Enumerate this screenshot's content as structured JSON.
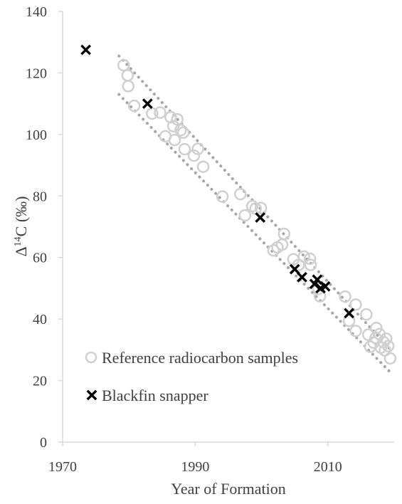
{
  "chart_data": {
    "type": "scatter",
    "xlabel": "Year of Formation",
    "ylabel_main": "Δ",
    "ylabel_sup": "14",
    "ylabel_rest": "C (‰)",
    "xlim": [
      1970,
      2020
    ],
    "ylim": [
      0,
      140
    ],
    "x_ticks": [
      1970,
      1990,
      2010
    ],
    "y_ticks": [
      0,
      20,
      40,
      60,
      80,
      100,
      120,
      140
    ],
    "grid": false,
    "legend_position": "bottom-left",
    "band": {
      "upper": [
        [
          1978.5,
          125.5
        ],
        [
          2019.5,
          30
        ]
      ],
      "lower": [
        [
          1978.5,
          113
        ],
        [
          2019.5,
          22.5
        ]
      ]
    },
    "series": [
      {
        "name": "Reference radiocarbon samples",
        "marker": "open-circle",
        "color": "#d0d0d0",
        "points": [
          [
            1979.2,
            122.5
          ],
          [
            1979.8,
            119.2
          ],
          [
            1979.9,
            115.7
          ],
          [
            1980.8,
            109.3
          ],
          [
            1983.5,
            106.8
          ],
          [
            1984.7,
            107.1
          ],
          [
            1985.5,
            99.4
          ],
          [
            1986.3,
            105.6
          ],
          [
            1986.7,
            102.7
          ],
          [
            1986.9,
            98.2
          ],
          [
            1987.3,
            104.9
          ],
          [
            1987.8,
            101.4
          ],
          [
            1988.2,
            100.6
          ],
          [
            1988.4,
            95.2
          ],
          [
            1989.8,
            93.1
          ],
          [
            1990.4,
            95.3
          ],
          [
            1991.2,
            89.5
          ],
          [
            1994.1,
            79.8
          ],
          [
            1996.8,
            80.6
          ],
          [
            1997.5,
            73.7
          ],
          [
            1998.6,
            76.7
          ],
          [
            1999.1,
            75.9
          ],
          [
            1999.9,
            76.1
          ],
          [
            2001.8,
            62.3
          ],
          [
            2002.4,
            63.3
          ],
          [
            2003.1,
            64.2
          ],
          [
            2003.4,
            67.7
          ],
          [
            2004.8,
            59.4
          ],
          [
            2005.6,
            57.6
          ],
          [
            2006.4,
            60.3
          ],
          [
            2007.3,
            59.6
          ],
          [
            2007.4,
            57.6
          ],
          [
            2008.6,
            49.8
          ],
          [
            2008.8,
            47.4
          ],
          [
            2012.6,
            47.3
          ],
          [
            2013.2,
            39.4
          ],
          [
            2014.2,
            44.7
          ],
          [
            2014.2,
            36.1
          ],
          [
            2015.8,
            41.5
          ],
          [
            2016.1,
            34.9
          ],
          [
            2016.4,
            31.0
          ],
          [
            2017.2,
            33.9
          ],
          [
            2017.3,
            37.1
          ],
          [
            2017.8,
            35.1
          ],
          [
            2018.0,
            30.7
          ],
          [
            2018.4,
            32.5
          ],
          [
            2018.6,
            29.8
          ],
          [
            2019.1,
            31.2
          ],
          [
            2019.4,
            27.2
          ],
          [
            2016.9,
            32.3
          ],
          [
            2018.8,
            33.6
          ]
        ]
      },
      {
        "name": "Blackfin snapper",
        "marker": "x",
        "color": "#000000",
        "points": [
          [
            1973.5,
            127.5
          ],
          [
            1982.8,
            110.0
          ],
          [
            1999.8,
            73.0
          ],
          [
            2005.0,
            56.2
          ],
          [
            2006.1,
            53.6
          ],
          [
            2008.0,
            51.4
          ],
          [
            2008.4,
            52.8
          ],
          [
            2008.9,
            50.0
          ],
          [
            2009.6,
            50.6
          ],
          [
            2013.2,
            41.9
          ]
        ]
      }
    ]
  }
}
